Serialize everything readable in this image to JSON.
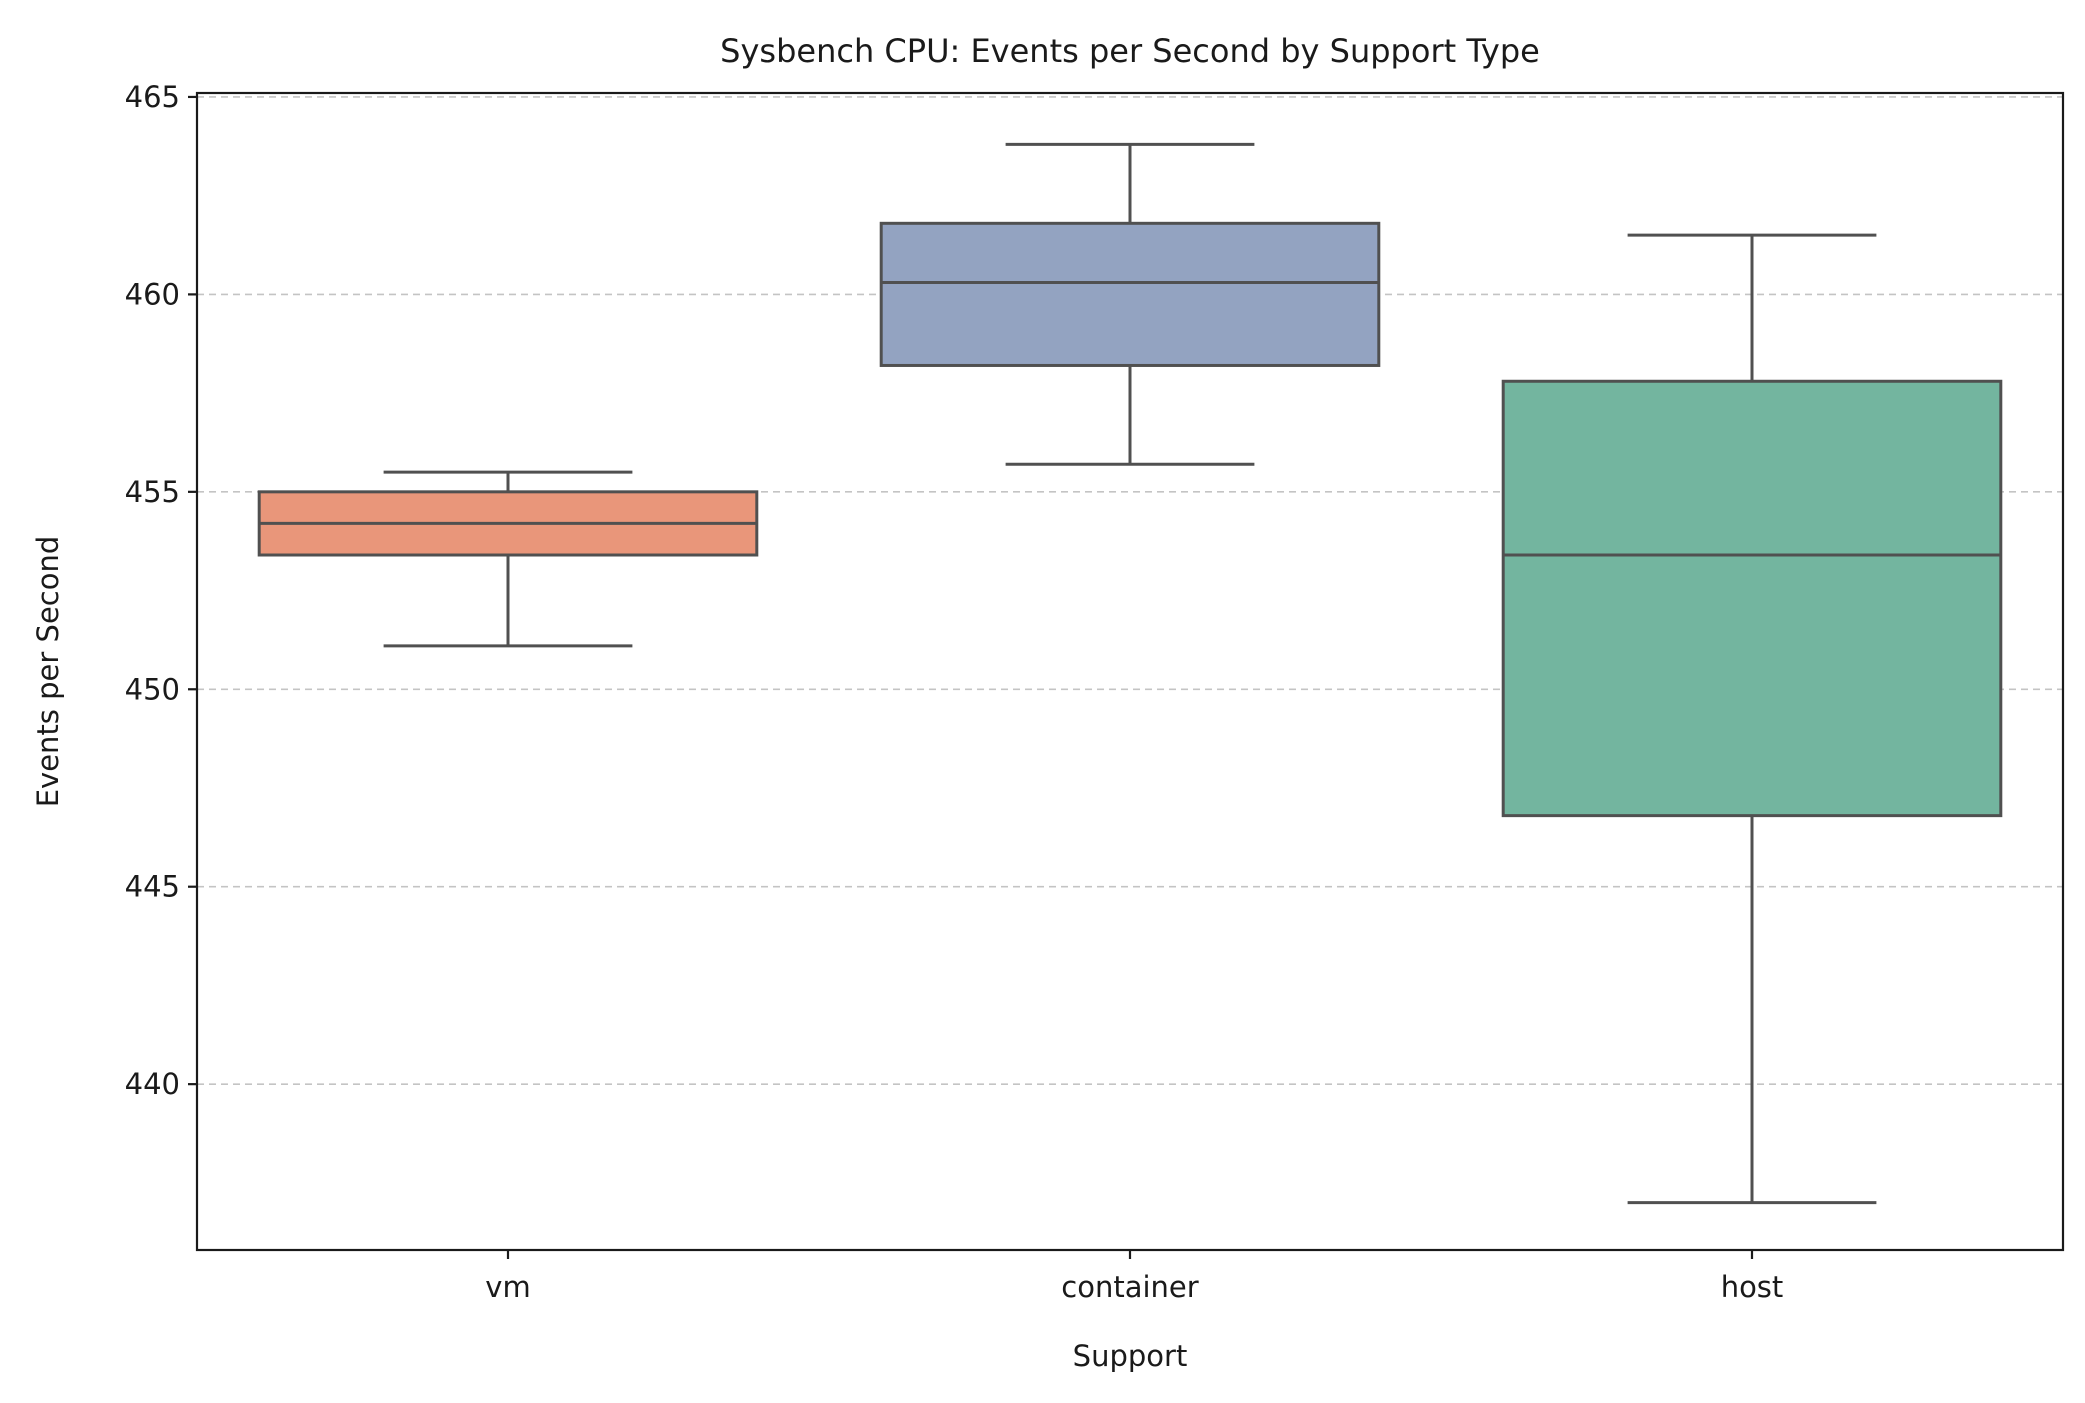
{
  "chart_data": {
    "type": "box",
    "title": "Sysbench CPU: Events per Second by Support Type",
    "xlabel": "Support",
    "ylabel": "Events per Second",
    "ylim": [
      435.8,
      465.1
    ],
    "yticks": [
      440,
      445,
      450,
      455,
      460,
      465
    ],
    "grid": "y-dashed",
    "categories": [
      "vm",
      "container",
      "host"
    ],
    "boxes": [
      {
        "category": "vm",
        "whisker_low": 451.1,
        "q1": 453.4,
        "median": 454.2,
        "q3": 455.0,
        "whisker_high": 455.5,
        "color": "#e9967a"
      },
      {
        "category": "container",
        "whisker_low": 455.7,
        "q1": 458.2,
        "median": 460.3,
        "q3": 461.8,
        "whisker_high": 463.8,
        "color": "#93a3c1"
      },
      {
        "category": "host",
        "whisker_low": 437.0,
        "q1": 446.8,
        "median": 453.4,
        "q3": 457.8,
        "whisker_high": 461.5,
        "color": "#73b59f"
      }
    ]
  }
}
